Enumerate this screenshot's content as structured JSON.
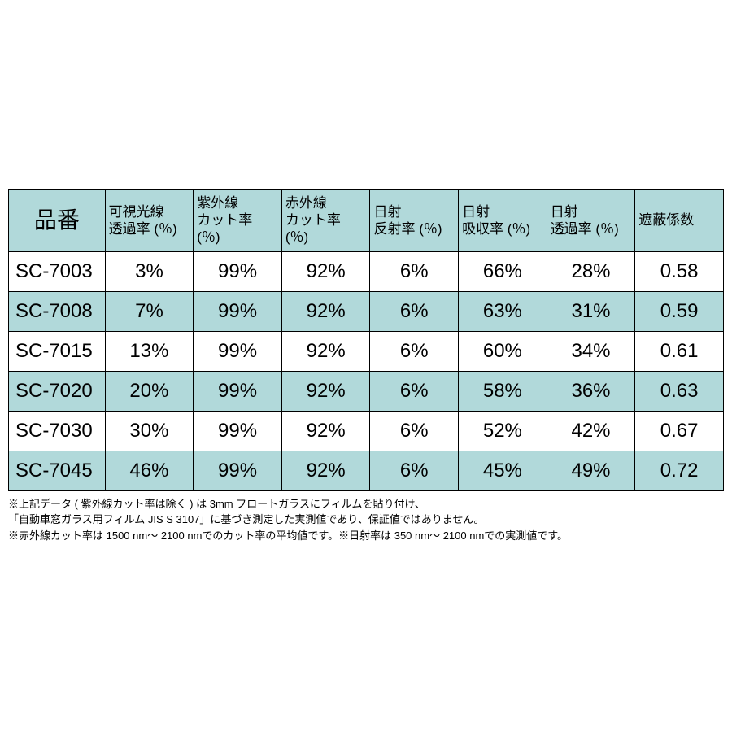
{
  "colors": {
    "header_bg": "#b1d9da",
    "alt_row_bg": "#b1d9da",
    "border": "#000000",
    "background": "#ffffff",
    "text": "#000000"
  },
  "table": {
    "columns": [
      {
        "top": "",
        "bottom": "品番",
        "single": true
      },
      {
        "top": "可視光線",
        "bottom": "透過率 (％)"
      },
      {
        "top": "紫外線",
        "bottom": "カット率 (％)"
      },
      {
        "top": "赤外線",
        "bottom": "カット率 (％)"
      },
      {
        "top": "日射",
        "bottom": "反射率 (％)"
      },
      {
        "top": "日射",
        "bottom": "吸収率 (％)"
      },
      {
        "top": "日射",
        "bottom": "透過率 (％)"
      },
      {
        "top": "",
        "bottom": "遮蔽係数",
        "single": true
      }
    ],
    "rows": [
      {
        "product": "SC-7003",
        "values": [
          "3%",
          "99%",
          "92%",
          "6%",
          "66%",
          "28%",
          "0.58"
        ],
        "alt": false
      },
      {
        "product": "SC-7008",
        "values": [
          "7%",
          "99%",
          "92%",
          "6%",
          "63%",
          "31%",
          "0.59"
        ],
        "alt": true
      },
      {
        "product": "SC-7015",
        "values": [
          "13%",
          "99%",
          "92%",
          "6%",
          "60%",
          "34%",
          "0.61"
        ],
        "alt": false
      },
      {
        "product": "SC-7020",
        "values": [
          "20%",
          "99%",
          "92%",
          "6%",
          "58%",
          "36%",
          "0.63"
        ],
        "alt": true
      },
      {
        "product": "SC-7030",
        "values": [
          "30%",
          "99%",
          "92%",
          "6%",
          "52%",
          "42%",
          "0.67"
        ],
        "alt": false
      },
      {
        "product": "SC-7045",
        "values": [
          "46%",
          "99%",
          "92%",
          "6%",
          "45%",
          "49%",
          "0.72"
        ],
        "alt": true
      }
    ]
  },
  "notes": [
    "※上記データ ( 紫外線カット率は除く ) は 3mm フロートガラスにフィルムを貼り付け、",
    "「自動車窓ガラス用フィルム JIS S 3107」に基づき測定した実測値であり、保証値ではありません。",
    "※赤外線カット率は 1500 nm～ 2100 nmでのカット率の平均値です。※日射率は 350 nm～ 2100 nmでの実測値です。"
  ]
}
